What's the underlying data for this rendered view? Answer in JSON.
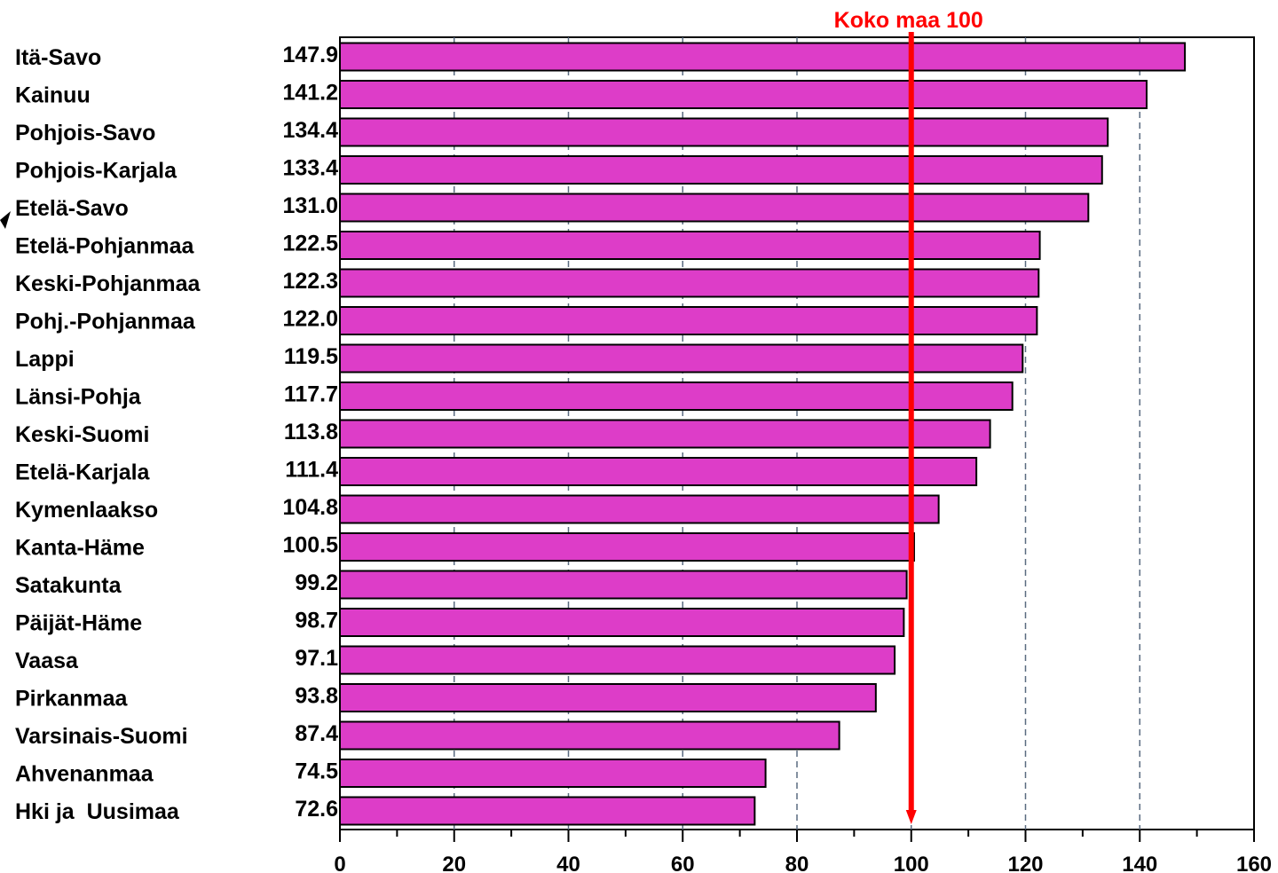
{
  "chart_data": {
    "type": "bar",
    "orientation": "horizontal",
    "categories": [
      "Itä-Savo",
      "Kainuu",
      "Pohjois-Savo",
      "Pohjois-Karjala",
      "Etelä-Savo",
      "Etelä-Pohjanmaa",
      "Keski-Pohjanmaa",
      "Pohj.-Pohjanmaa",
      "Lappi",
      "Länsi-Pohja",
      "Keski-Suomi",
      "Etelä-Karjala",
      "Kymenlaakso",
      "Kanta-Häme",
      "Satakunta",
      "Päijät-Häme",
      "Vaasa",
      "Pirkanmaa",
      "Varsinais-Suomi",
      "Ahvenanmaa",
      "Hki ja  Uusimaa"
    ],
    "value_labels": [
      "147.9",
      "141.2",
      "134.4",
      "133.4",
      "131.0",
      "122.5",
      "122.3",
      "122.0",
      "119.5",
      "117.7",
      "113.8",
      "111.4",
      "104.8",
      "100.5",
      "99.2",
      "98.7",
      "97.1",
      "93.8",
      "87.4",
      "74.5",
      "72.6"
    ],
    "values": [
      147.9,
      141.2,
      134.4,
      133.4,
      131.0,
      122.5,
      122.3,
      122.0,
      119.5,
      117.7,
      113.8,
      111.4,
      104.8,
      100.5,
      99.2,
      98.7,
      97.1,
      93.8,
      87.4,
      74.5,
      72.6
    ],
    "xlim": [
      0,
      160
    ],
    "x_ticks": [
      "0",
      "20",
      "40",
      "60",
      "80",
      "100",
      "120",
      "140",
      "160"
    ],
    "x_tick_values": [
      0,
      20,
      40,
      60,
      80,
      100,
      120,
      140,
      160
    ],
    "gridlines": [
      20,
      40,
      60,
      80,
      100,
      120,
      140
    ],
    "grid": true,
    "reference_line": {
      "value": 100,
      "label": "Koko maa 100",
      "color": "#ff0000"
    },
    "bar_color": "#dd3dc8",
    "grid_color": "#5a6b80"
  }
}
